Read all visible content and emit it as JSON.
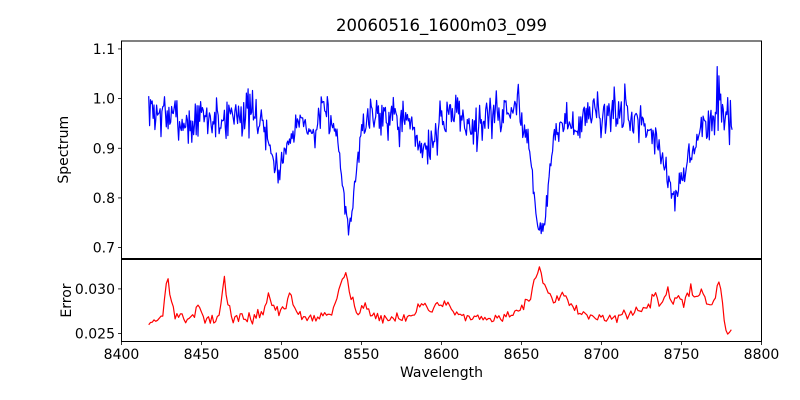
{
  "figure": {
    "background": "#ffffff",
    "frame_color": "#000000",
    "text_color": "#000000"
  },
  "chart_data": {
    "type": "line",
    "title": "20060516_1600m03_099",
    "xlabel": "Wavelength",
    "grid": false,
    "legend": null,
    "x_range": [
      8400,
      8800
    ],
    "x_ticks": [
      {
        "v": 8400,
        "label": "8400"
      },
      {
        "v": 8450,
        "label": "8450"
      },
      {
        "v": 8500,
        "label": "8500"
      },
      {
        "v": 8550,
        "label": "8550"
      },
      {
        "v": 8600,
        "label": "8600"
      },
      {
        "v": 8650,
        "label": "8650"
      },
      {
        "v": 8700,
        "label": "8700"
      },
      {
        "v": 8750,
        "label": "8750"
      },
      {
        "v": 8800,
        "label": "8800"
      }
    ],
    "panels": [
      {
        "id": "spectrum",
        "ylabel": "Spectrum",
        "ylim": [
          0.678,
          1.116
        ],
        "y_ticks": [
          {
            "v": 0.7,
            "label": "0.7"
          },
          {
            "v": 0.8,
            "label": "0.8"
          },
          {
            "v": 0.9,
            "label": "0.9"
          },
          {
            "v": 1.0,
            "label": "1.0"
          },
          {
            "v": 1.1,
            "label": "1.1"
          }
        ],
        "series": {
          "name": "spectrum",
          "color": "#0000ff",
          "line_width": 1.2,
          "x_start": 8417,
          "x_end": 8782,
          "x_step": 0.55,
          "noise_seed": 7,
          "absorption_features_note": "deep dips near 8498, 8542, 8662 (Ca II triplet), broad dip near 8745, shallow dip near 8590",
          "anchors": [
            [
              8417,
              0.975,
              0.025
            ],
            [
              8424,
              0.97,
              0.022
            ],
            [
              8430,
              0.965,
              0.022
            ],
            [
              8437,
              0.955,
              0.022
            ],
            [
              8444,
              0.945,
              0.02
            ],
            [
              8450,
              0.965,
              0.022
            ],
            [
              8458,
              0.955,
              0.022
            ],
            [
              8464,
              0.96,
              0.025
            ],
            [
              8472,
              0.975,
              0.022
            ],
            [
              8480,
              0.97,
              0.022
            ],
            [
              8488,
              0.955,
              0.018
            ],
            [
              8493,
              0.9,
              0.015
            ],
            [
              8496,
              0.862,
              0.013
            ],
            [
              8498,
              0.855,
              0.013
            ],
            [
              8501,
              0.88,
              0.015
            ],
            [
              8505,
              0.93,
              0.015
            ],
            [
              8510,
              0.955,
              0.018
            ],
            [
              8516,
              0.95,
              0.018
            ],
            [
              8520,
              0.925,
              0.015
            ],
            [
              8524,
              0.955,
              0.02
            ],
            [
              8529,
              0.975,
              0.022
            ],
            [
              8533,
              0.945,
              0.015
            ],
            [
              8536,
              0.9,
              0.012
            ],
            [
              8539,
              0.8,
              0.012
            ],
            [
              8542,
              0.748,
              0.01
            ],
            [
              8544,
              0.775,
              0.012
            ],
            [
              8547,
              0.865,
              0.015
            ],
            [
              8550,
              0.93,
              0.018
            ],
            [
              8554,
              0.965,
              0.022
            ],
            [
              8562,
              0.975,
              0.025
            ],
            [
              8572,
              0.97,
              0.025
            ],
            [
              8580,
              0.945,
              0.02
            ],
            [
              8586,
              0.91,
              0.016
            ],
            [
              8591,
              0.9,
              0.016
            ],
            [
              8597,
              0.925,
              0.018
            ],
            [
              8603,
              0.965,
              0.022
            ],
            [
              8609,
              0.985,
              0.025
            ],
            [
              8615,
              0.955,
              0.02
            ],
            [
              8620,
              0.935,
              0.02
            ],
            [
              8626,
              0.96,
              0.022
            ],
            [
              8634,
              0.975,
              0.022
            ],
            [
              8642,
              0.97,
              0.025
            ],
            [
              8648,
              0.985,
              0.028
            ],
            [
              8652,
              0.945,
              0.015
            ],
            [
              8655,
              0.905,
              0.013
            ],
            [
              8658,
              0.81,
              0.012
            ],
            [
              8661,
              0.725,
              0.01
            ],
            [
              8663,
              0.735,
              0.01
            ],
            [
              8666,
              0.8,
              0.013
            ],
            [
              8669,
              0.885,
              0.015
            ],
            [
              8673,
              0.945,
              0.018
            ],
            [
              8680,
              0.955,
              0.02
            ],
            [
              8686,
              0.94,
              0.02
            ],
            [
              8693,
              0.975,
              0.025
            ],
            [
              8700,
              0.97,
              0.022
            ],
            [
              8712,
              0.97,
              0.026
            ],
            [
              8720,
              0.96,
              0.022
            ],
            [
              8728,
              0.95,
              0.02
            ],
            [
              8734,
              0.925,
              0.016
            ],
            [
              8739,
              0.875,
              0.014
            ],
            [
              8743,
              0.815,
              0.013
            ],
            [
              8746,
              0.8,
              0.013
            ],
            [
              8750,
              0.83,
              0.014
            ],
            [
              8754,
              0.87,
              0.015
            ],
            [
              8759,
              0.92,
              0.018
            ],
            [
              8764,
              0.945,
              0.02
            ],
            [
              8770,
              0.96,
              0.028
            ],
            [
              8774,
              0.99,
              0.033
            ],
            [
              8778,
              0.975,
              0.033
            ],
            [
              8782,
              0.96,
              0.025
            ]
          ]
        }
      },
      {
        "id": "error",
        "ylabel": "Error",
        "ylim": [
          0.0241,
          0.0333
        ],
        "y_ticks": [
          {
            "v": 0.025,
            "label": "0.025"
          },
          {
            "v": 0.03,
            "label": "0.030"
          }
        ],
        "series": {
          "name": "error",
          "color": "#ff0000",
          "line_width": 1.2,
          "x_start": 8417,
          "x_end": 8782,
          "x_step": 1.1,
          "noise_seed": 13,
          "absorption_features_note": "baseline ~0.0265 with peaks near 8429, 8464, 8540, 8661, 8773; dip to ~0.025 near 8780",
          "anchors": [
            [
              8417,
              0.0262,
              0.0003
            ],
            [
              8422,
              0.0266,
              0.0003
            ],
            [
              8426,
              0.027,
              0.0003
            ],
            [
              8428,
              0.0305,
              0.0002
            ],
            [
              8429,
              0.0315,
              0.0002
            ],
            [
              8431,
              0.0285,
              0.0003
            ],
            [
              8434,
              0.0267,
              0.0003
            ],
            [
              8440,
              0.0266,
              0.0003
            ],
            [
              8445,
              0.0272,
              0.0003
            ],
            [
              8448,
              0.0282,
              0.0003
            ],
            [
              8451,
              0.0267,
              0.0003
            ],
            [
              8457,
              0.0265,
              0.0003
            ],
            [
              8462,
              0.0275,
              0.0003
            ],
            [
              8464,
              0.0315,
              0.0002
            ],
            [
              8466,
              0.0285,
              0.0003
            ],
            [
              8470,
              0.0266,
              0.0003
            ],
            [
              8476,
              0.0267,
              0.0003
            ],
            [
              8482,
              0.0268,
              0.0003
            ],
            [
              8488,
              0.0272,
              0.0003
            ],
            [
              8492,
              0.0295,
              0.0003
            ],
            [
              8495,
              0.028,
              0.0003
            ],
            [
              8499,
              0.0272,
              0.0003
            ],
            [
              8503,
              0.0285,
              0.0003
            ],
            [
              8506,
              0.0292,
              0.0003
            ],
            [
              8509,
              0.0275,
              0.0003
            ],
            [
              8514,
              0.0268,
              0.0003
            ],
            [
              8520,
              0.0266,
              0.0003
            ],
            [
              8526,
              0.027,
              0.0003
            ],
            [
              8532,
              0.0274,
              0.0003
            ],
            [
              8536,
              0.0305,
              0.00025
            ],
            [
              8539,
              0.0315,
              0.00025
            ],
            [
              8541,
              0.0312,
              0.00025
            ],
            [
              8544,
              0.0288,
              0.0003
            ],
            [
              8548,
              0.0273,
              0.0003
            ],
            [
              8552,
              0.0282,
              0.0003
            ],
            [
              8555,
              0.0272,
              0.0003
            ],
            [
              8560,
              0.0267,
              0.0003
            ],
            [
              8568,
              0.0266,
              0.0003
            ],
            [
              8575,
              0.0268,
              0.0003
            ],
            [
              8582,
              0.0273,
              0.0003
            ],
            [
              8588,
              0.0282,
              0.0003
            ],
            [
              8593,
              0.0278,
              0.0003
            ],
            [
              8598,
              0.0282,
              0.0003
            ],
            [
              8602,
              0.0285,
              0.0003
            ],
            [
              8606,
              0.0274,
              0.0003
            ],
            [
              8612,
              0.0268,
              0.0003
            ],
            [
              8620,
              0.0266,
              0.0003
            ],
            [
              8628,
              0.0266,
              0.0003
            ],
            [
              8636,
              0.0268,
              0.0003
            ],
            [
              8644,
              0.0272,
              0.0003
            ],
            [
              8650,
              0.0277,
              0.0003
            ],
            [
              8655,
              0.0288,
              0.0003
            ],
            [
              8658,
              0.0308,
              0.00025
            ],
            [
              8661,
              0.0326,
              0.0002
            ],
            [
              8663,
              0.0312,
              0.00025
            ],
            [
              8666,
              0.0295,
              0.0003
            ],
            [
              8670,
              0.0283,
              0.0003
            ],
            [
              8675,
              0.0292,
              0.0003
            ],
            [
              8679,
              0.0285,
              0.0003
            ],
            [
              8684,
              0.0278,
              0.0003
            ],
            [
              8690,
              0.0272,
              0.0003
            ],
            [
              8697,
              0.0268,
              0.0003
            ],
            [
              8705,
              0.0267,
              0.0003
            ],
            [
              8712,
              0.027,
              0.0003
            ],
            [
              8718,
              0.0272,
              0.0003
            ],
            [
              8724,
              0.0275,
              0.0003
            ],
            [
              8730,
              0.0282,
              0.0003
            ],
            [
              8734,
              0.0292,
              0.0003
            ],
            [
              8737,
              0.0284,
              0.0003
            ],
            [
              8741,
              0.03,
              0.0003
            ],
            [
              8744,
              0.0288,
              0.0003
            ],
            [
              8748,
              0.0294,
              0.0003
            ],
            [
              8752,
              0.0285,
              0.0003
            ],
            [
              8756,
              0.0303,
              0.0003
            ],
            [
              8759,
              0.0288,
              0.0003
            ],
            [
              8762,
              0.0302,
              0.0003
            ],
            [
              8765,
              0.0288,
              0.0003
            ],
            [
              8768,
              0.0282,
              0.0003
            ],
            [
              8771,
              0.0285,
              0.0003
            ],
            [
              8773,
              0.0315,
              0.0002
            ],
            [
              8775,
              0.0295,
              0.0003
            ],
            [
              8776,
              0.0272,
              0.0003
            ],
            [
              8778,
              0.0252,
              0.0002
            ],
            [
              8780,
              0.025,
              0.0002
            ],
            [
              8782,
              0.0262,
              0.0002
            ]
          ]
        }
      }
    ]
  }
}
